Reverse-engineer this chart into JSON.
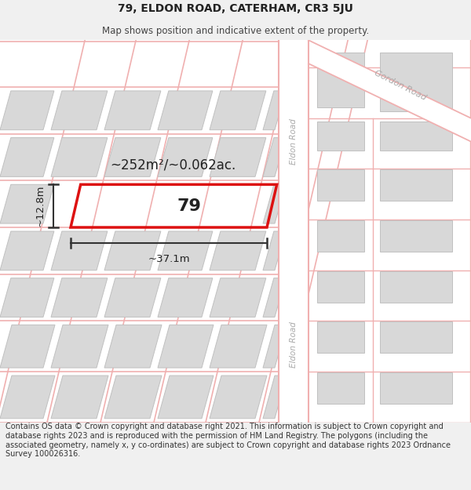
{
  "title": "79, ELDON ROAD, CATERHAM, CR3 5JU",
  "subtitle": "Map shows position and indicative extent of the property.",
  "footer": "Contains OS data © Crown copyright and database right 2021. This information is subject to Crown copyright and database rights 2023 and is reproduced with the permission of HM Land Registry. The polygons (including the associated geometry, namely x, y co-ordinates) are subject to Crown copyright and database rights 2023 Ordnance Survey 100026316.",
  "bg_color": "#f0f0f0",
  "map_bg": "#ffffff",
  "pink": "#f0b0b0",
  "block_fill": "#d8d8d8",
  "block_edge": "#c0c0c0",
  "red": "#dd1111",
  "gray_label": "#aaaaaa",
  "dark_text": "#222222",
  "area_label": "~252m²/~0.062ac.",
  "width_label": "~37.1m",
  "height_label": "~12.8m",
  "prop_num": "79",
  "eldon_label": "Eldon Road",
  "gordon_label": "Gordon Road",
  "title_fs": 10,
  "sub_fs": 8.5,
  "footer_fs": 7
}
